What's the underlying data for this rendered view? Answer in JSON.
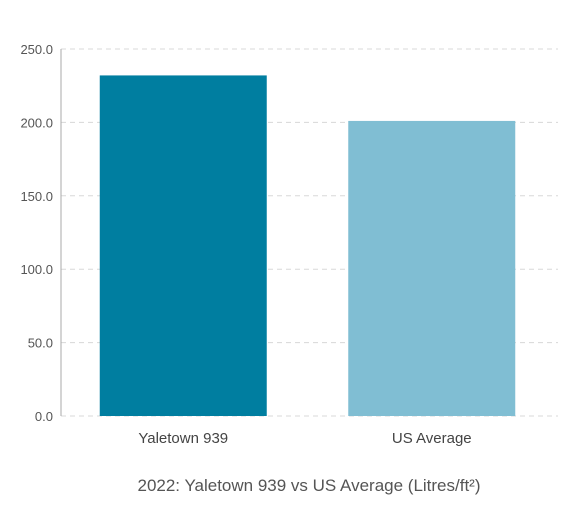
{
  "chart_data": {
    "type": "bar",
    "title": "2022: Yaletown 939 vs US Average (Litres/ft²)",
    "categories": [
      "Yaletown 939",
      "US Average"
    ],
    "values": [
      232,
      201
    ],
    "colors": [
      "#007ea0",
      "#80bed3"
    ],
    "ylim": [
      0,
      250
    ],
    "yticks": [
      "0.0",
      "50.0",
      "100.0",
      "150.0",
      "200.0",
      "250.0"
    ],
    "grid": true,
    "legend": "none"
  }
}
